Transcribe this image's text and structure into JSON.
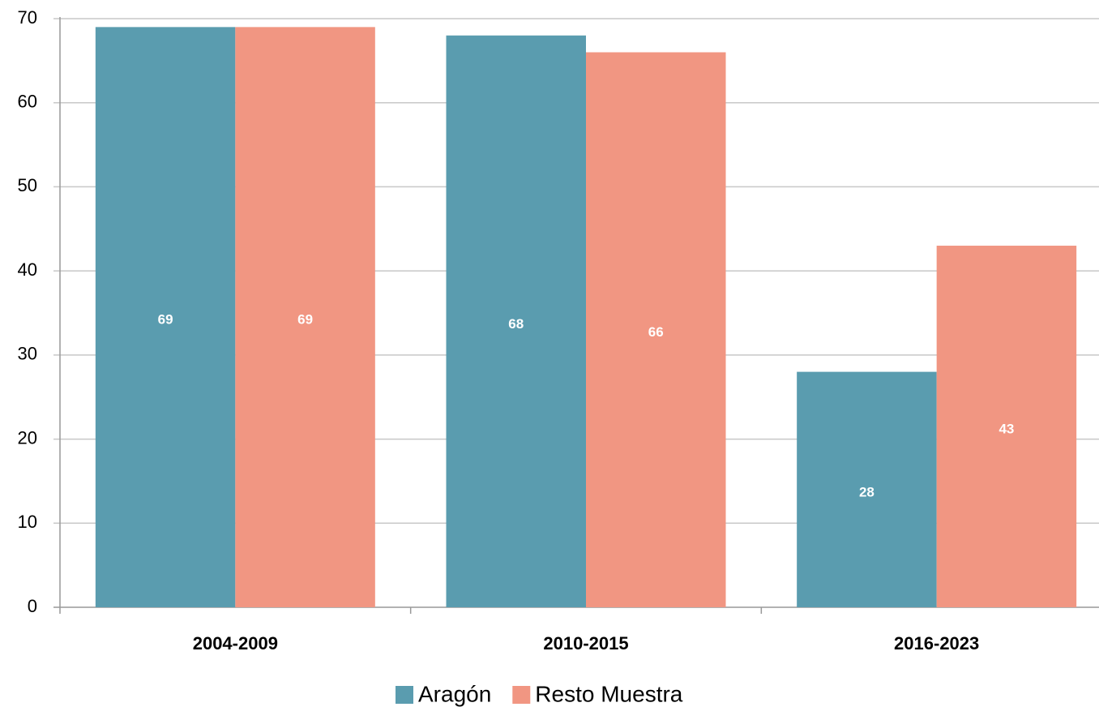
{
  "chart_data": {
    "type": "bar",
    "categories": [
      "2004-2009",
      "2010-2015",
      "2016-2023"
    ],
    "series": [
      {
        "name": "Aragón",
        "color": "#5a9caf",
        "values": [
          69,
          68,
          28
        ]
      },
      {
        "name": "Resto Muestra",
        "color": "#f19682",
        "values": [
          69,
          66,
          43
        ]
      }
    ],
    "ylim": [
      0,
      70
    ],
    "yticks": [
      0,
      10,
      20,
      30,
      40,
      50,
      60,
      70
    ],
    "grid": true,
    "legend": "bottom",
    "data_labels": true
  }
}
